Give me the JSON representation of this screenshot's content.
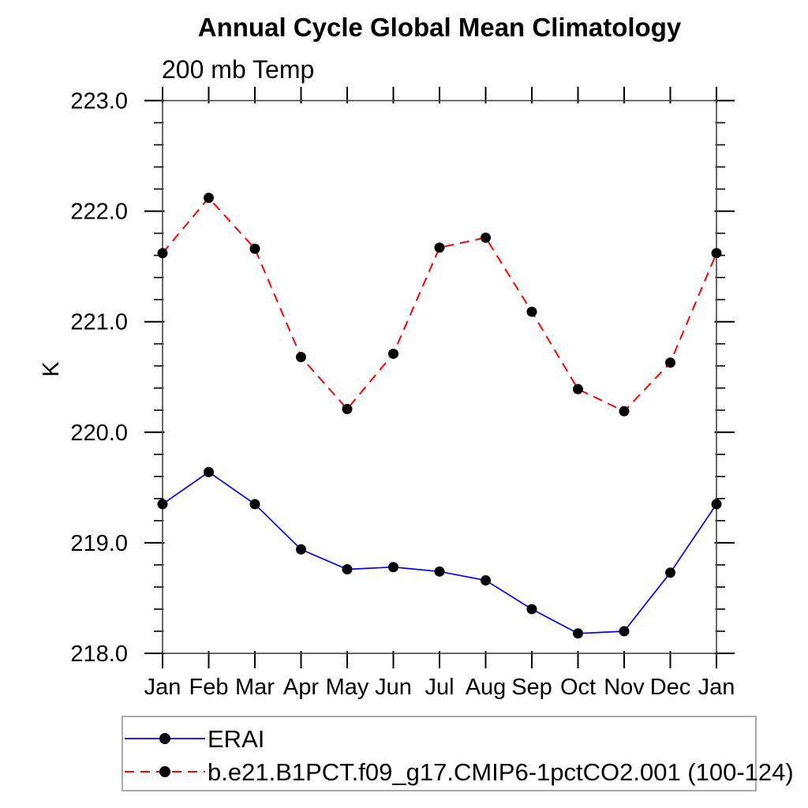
{
  "page": {
    "background": "#ffffff"
  },
  "chart_data": {
    "type": "line",
    "title": "Annual Cycle Global Mean Climatology",
    "subtitle": "200 mb Temp",
    "ylabel": "K",
    "categories": [
      "Jan",
      "Feb",
      "Mar",
      "Apr",
      "May",
      "Jun",
      "Jul",
      "Aug",
      "Sep",
      "Oct",
      "Nov",
      "Dec",
      "Jan"
    ],
    "ylim": [
      218.0,
      223.0
    ],
    "ytick_interval": 1.0,
    "yminor_interval": 0.2,
    "ytick_labels": [
      "218.0",
      "219.0",
      "220.0",
      "221.0",
      "222.0",
      "223.0"
    ],
    "grid": false,
    "legend_position": "bottom-left",
    "frame_color": "#444444",
    "tick_color": "#000000",
    "legend_border_color": "#aaaaaa",
    "marker_color": "#000000",
    "series": [
      {
        "name": "ERAI",
        "color": "#0000ff",
        "line_style": "solid",
        "marker": "circle",
        "values": [
          219.35,
          219.64,
          219.35,
          218.94,
          218.76,
          218.78,
          218.74,
          218.66,
          218.4,
          218.18,
          218.2,
          218.73,
          219.35
        ]
      },
      {
        "name": "b.e21.B1PCT.f09_g17.CMIP6-1pctCO2.001 (100-124)",
        "color": "#ff0000",
        "line_style": "dashed",
        "marker": "circle",
        "values": [
          221.62,
          222.12,
          221.66,
          220.68,
          220.21,
          220.71,
          221.67,
          221.76,
          221.09,
          220.39,
          220.19,
          220.63,
          221.62
        ]
      }
    ]
  }
}
